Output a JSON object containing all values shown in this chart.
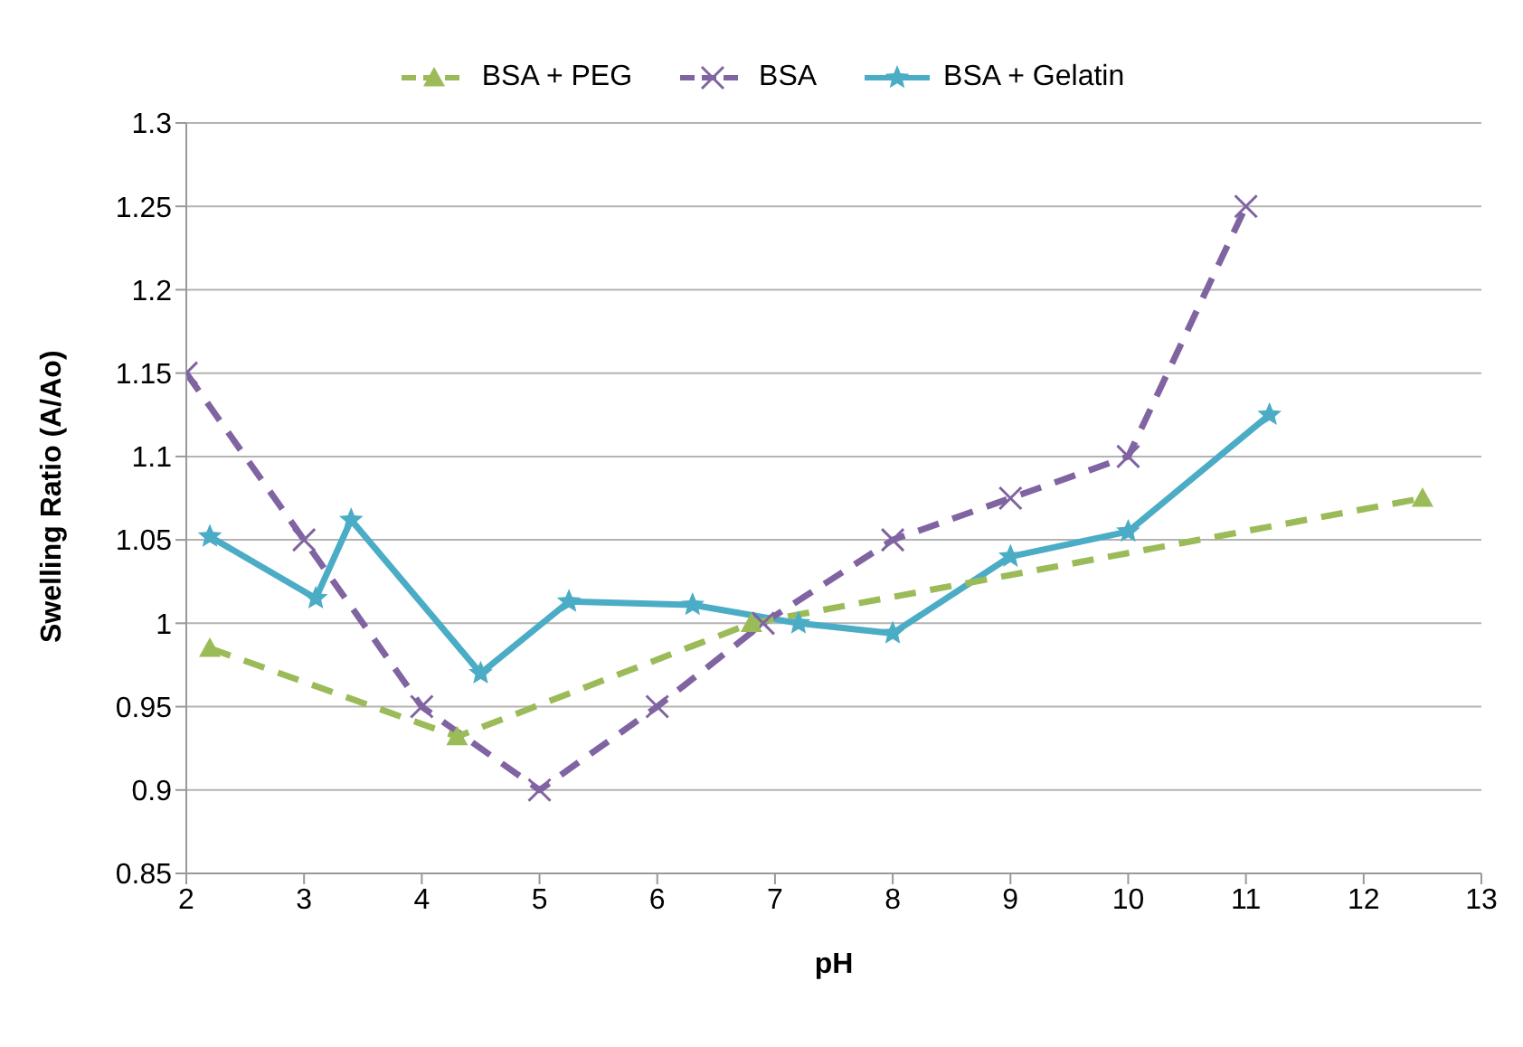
{
  "chart_data": {
    "type": "line",
    "xlabel": "pH",
    "ylabel": "Swelling Ratio (A/Ao)",
    "xlim": [
      2,
      13
    ],
    "xticks": [
      2,
      3,
      4,
      5,
      6,
      7,
      8,
      9,
      10,
      11,
      12,
      13
    ],
    "ylim": [
      0.85,
      1.3
    ],
    "yticks": [
      0.85,
      0.9,
      0.95,
      1,
      1.05,
      1.1,
      1.15,
      1.2,
      1.25,
      1.3
    ],
    "grid": "y",
    "legend": "top",
    "series": [
      {
        "name": "BSA + PEG",
        "color": "#9bbb59",
        "marker": "triangle",
        "line_style": "dashed",
        "x": [
          2.2,
          4.3,
          6.8,
          12.5
        ],
        "values": [
          0.985,
          0.932,
          1.0,
          1.075
        ]
      },
      {
        "name": "BSA",
        "color": "#8064a2",
        "marker": "cross",
        "line_style": "dashed",
        "x": [
          2,
          3,
          4,
          5,
          6,
          6.9,
          8,
          9,
          10,
          11
        ],
        "values": [
          1.15,
          1.05,
          0.95,
          0.9,
          0.95,
          1.0,
          1.05,
          1.075,
          1.1,
          1.25
        ]
      },
      {
        "name": "BSA + Gelatin",
        "color": "#4bacc6",
        "marker": "star",
        "line_style": "solid",
        "x": [
          2.2,
          3.1,
          3.4,
          4.5,
          5.25,
          6.3,
          7.2,
          8,
          9,
          10,
          11.2
        ],
        "values": [
          1.052,
          1.015,
          1.062,
          0.97,
          1.013,
          1.011,
          1.0,
          0.994,
          1.04,
          1.055,
          1.125
        ]
      }
    ]
  }
}
